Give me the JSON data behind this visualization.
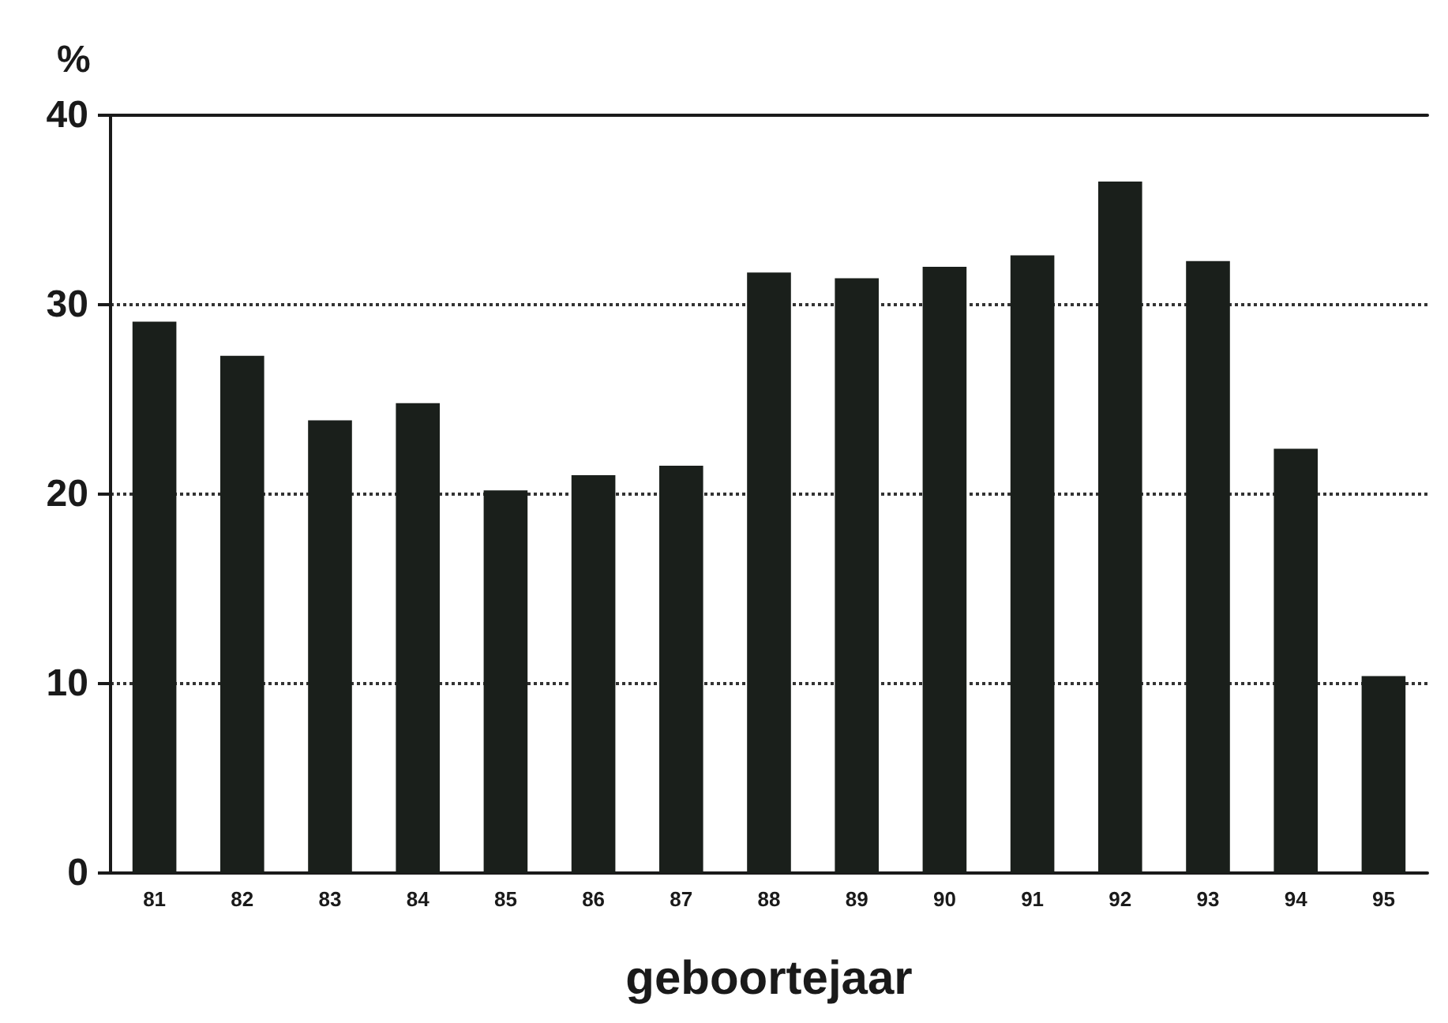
{
  "chart_data": {
    "type": "bar",
    "ylabel": "%",
    "xlabel": "geboortejaar",
    "categories": [
      "81",
      "82",
      "83",
      "84",
      "85",
      "86",
      "87",
      "88",
      "89",
      "90",
      "91",
      "92",
      "93",
      "94",
      "95"
    ],
    "values": [
      29.1,
      27.3,
      23.9,
      24.8,
      20.2,
      21.0,
      21.5,
      31.7,
      31.4,
      32.0,
      32.6,
      36.5,
      32.3,
      22.4,
      10.4
    ],
    "color": "#1a1f1b",
    "ylim": [
      0,
      40
    ],
    "yticks": [
      0,
      10,
      20,
      30,
      40
    ],
    "grid": "y",
    "line_style": "dotted"
  }
}
